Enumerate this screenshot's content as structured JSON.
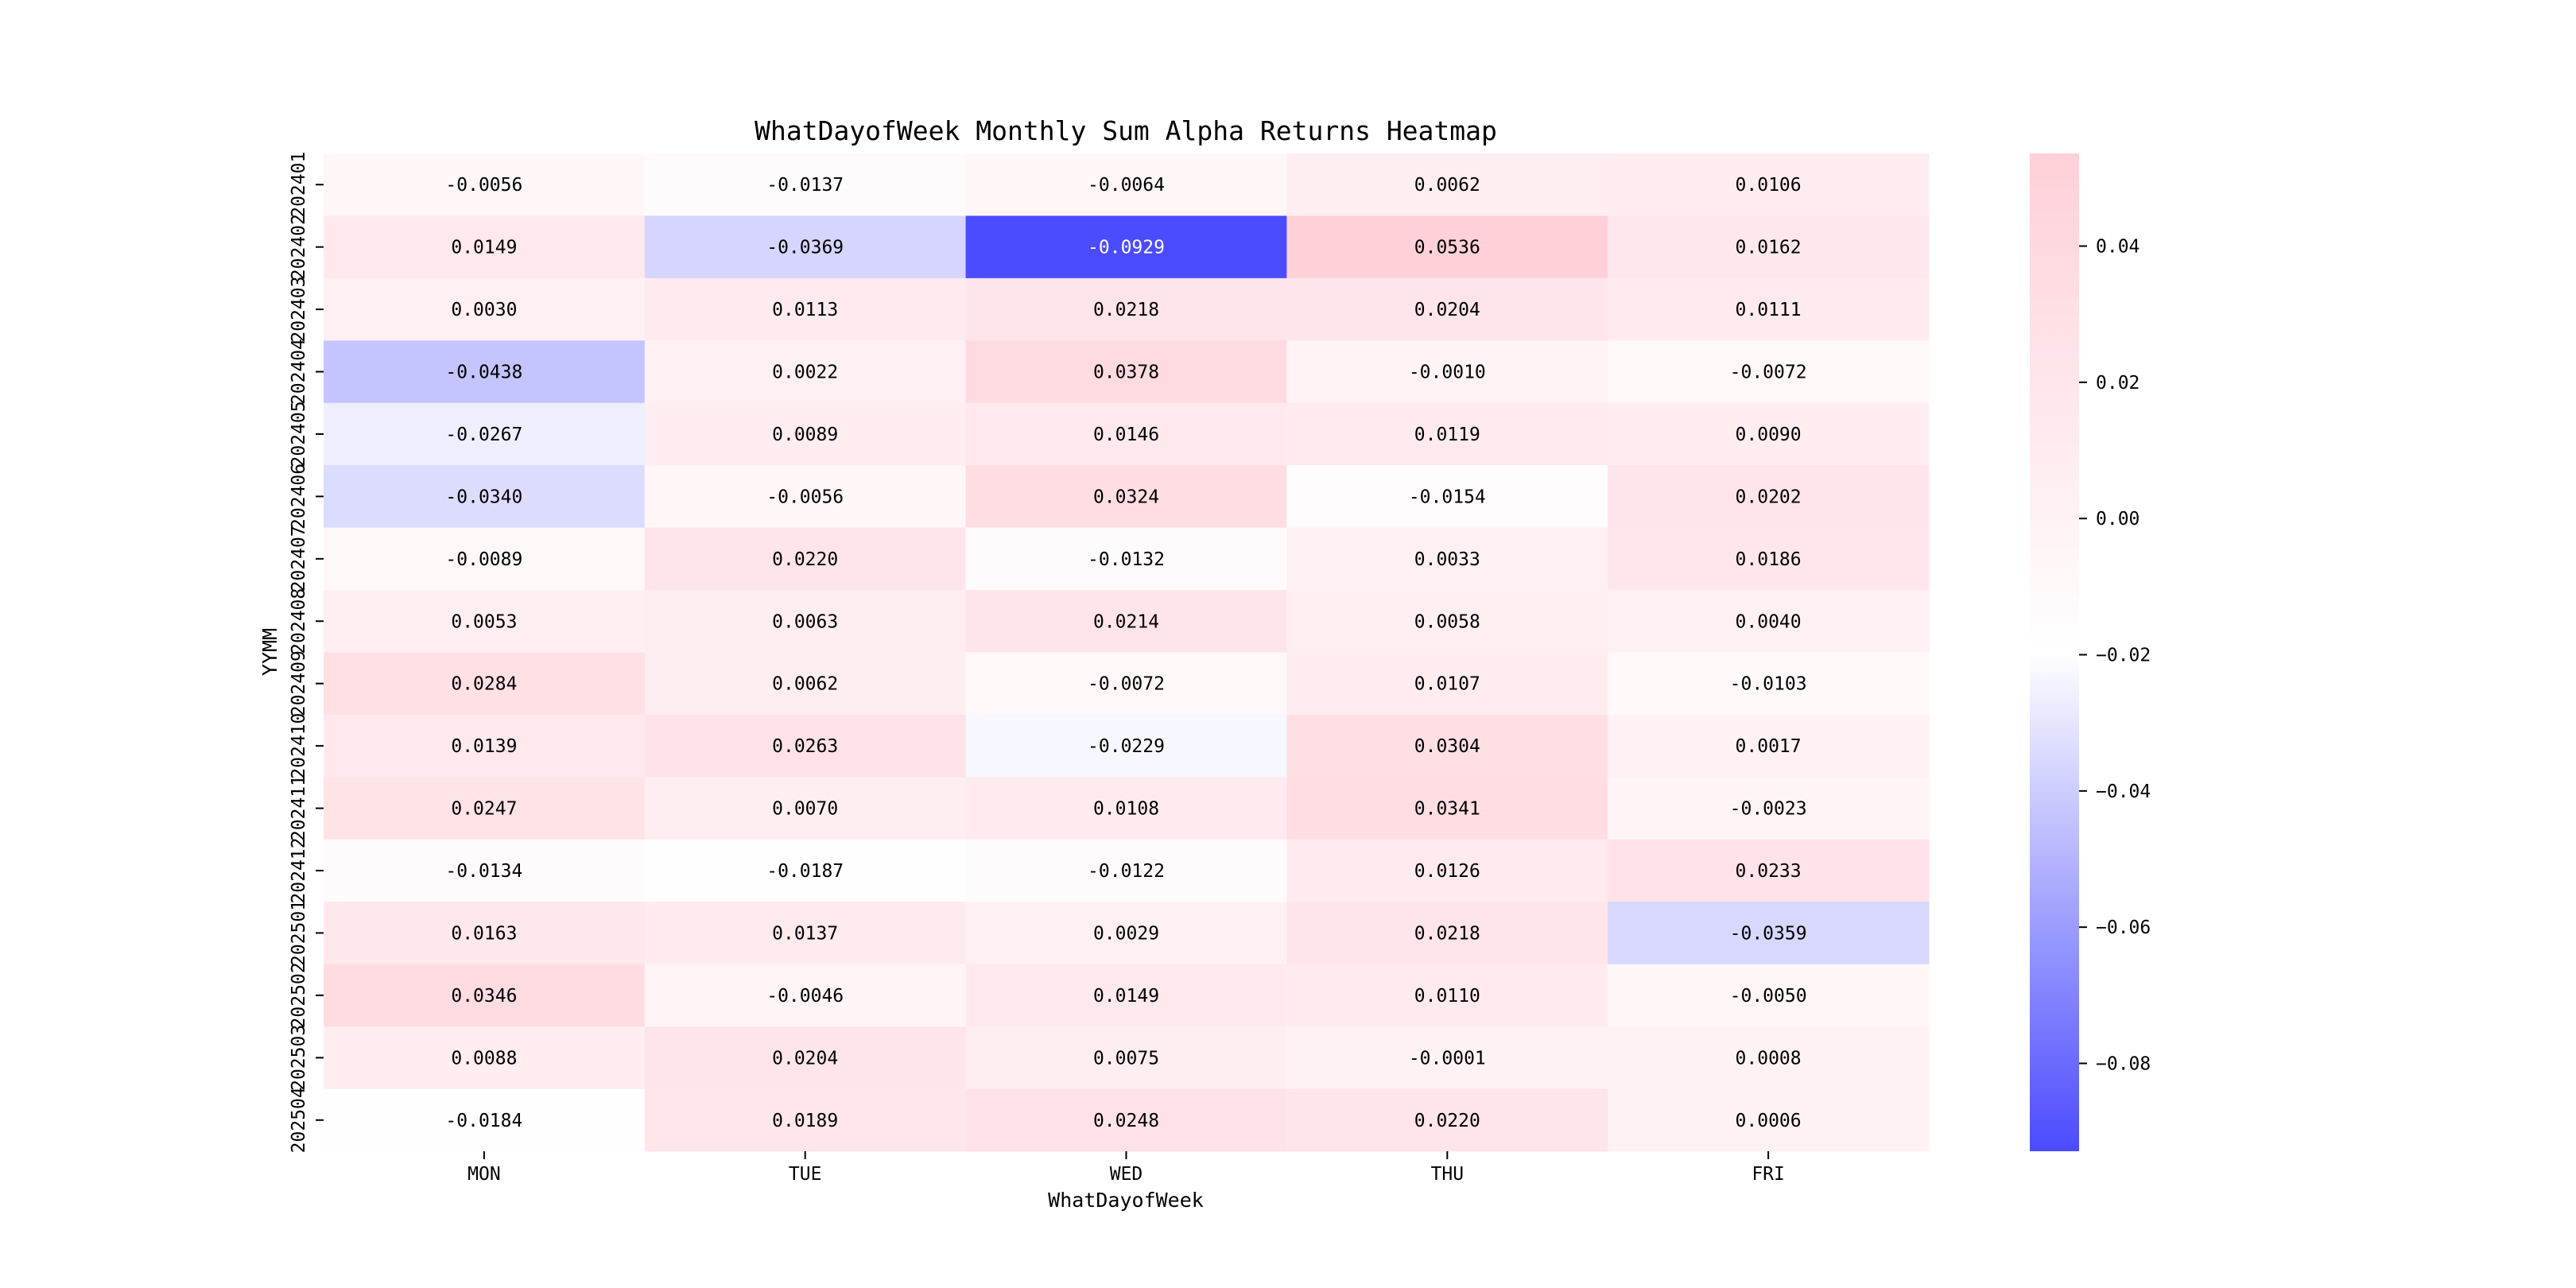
{
  "chart_data": {
    "type": "heatmap",
    "title": "WhatDayofWeek Monthly Sum Alpha Returns Heatmap",
    "xlabel": "WhatDayofWeek",
    "ylabel": "YYMM",
    "columns": [
      "MON",
      "TUE",
      "WED",
      "THU",
      "FRI"
    ],
    "rows": [
      "202401",
      "202402",
      "202403",
      "202404",
      "202405",
      "202406",
      "202407",
      "202408",
      "202409",
      "202410",
      "202411",
      "202412",
      "202501",
      "202502",
      "202503",
      "202504"
    ],
    "values": [
      [
        -0.0056,
        -0.0137,
        -0.0064,
        0.0062,
        0.0106
      ],
      [
        0.0149,
        -0.0369,
        -0.0929,
        0.0536,
        0.0162
      ],
      [
        0.003,
        0.0113,
        0.0218,
        0.0204,
        0.0111
      ],
      [
        -0.0438,
        0.0022,
        0.0378,
        -0.001,
        -0.0072
      ],
      [
        -0.0267,
        0.0089,
        0.0146,
        0.0119,
        0.009
      ],
      [
        -0.034,
        -0.0056,
        0.0324,
        -0.0154,
        0.0202
      ],
      [
        -0.0089,
        0.022,
        -0.0132,
        0.0033,
        0.0186
      ],
      [
        0.0053,
        0.0063,
        0.0214,
        0.0058,
        0.004
      ],
      [
        0.0284,
        0.0062,
        -0.0072,
        0.0107,
        -0.0103
      ],
      [
        0.0139,
        0.0263,
        -0.0229,
        0.0304,
        0.0017
      ],
      [
        0.0247,
        0.007,
        0.0108,
        0.0341,
        -0.0023
      ],
      [
        -0.0134,
        -0.0187,
        -0.0122,
        0.0126,
        0.0233
      ],
      [
        0.0163,
        0.0137,
        0.0029,
        0.0218,
        -0.0359
      ],
      [
        0.0346,
        -0.0046,
        0.0149,
        0.011,
        -0.005
      ],
      [
        0.0088,
        0.0204,
        0.0075,
        -0.0001,
        0.0008
      ],
      [
        -0.0184,
        0.0189,
        0.0248,
        0.022,
        0.0006
      ]
    ],
    "vmin": -0.0929,
    "vmax": 0.0536,
    "colorbar": {
      "ticks": [
        0.04,
        0.02,
        0.0,
        -0.02,
        -0.04,
        -0.06,
        -0.08
      ],
      "tick_labels": [
        "0.04",
        "0.02",
        "0.00",
        "−0.02",
        "−0.04",
        "−0.06",
        "−0.08"
      ]
    },
    "colors": {
      "low": "#4b4bff",
      "mid": "#ffffff",
      "high": "#ffd0d8"
    },
    "legend_placement": "right"
  }
}
